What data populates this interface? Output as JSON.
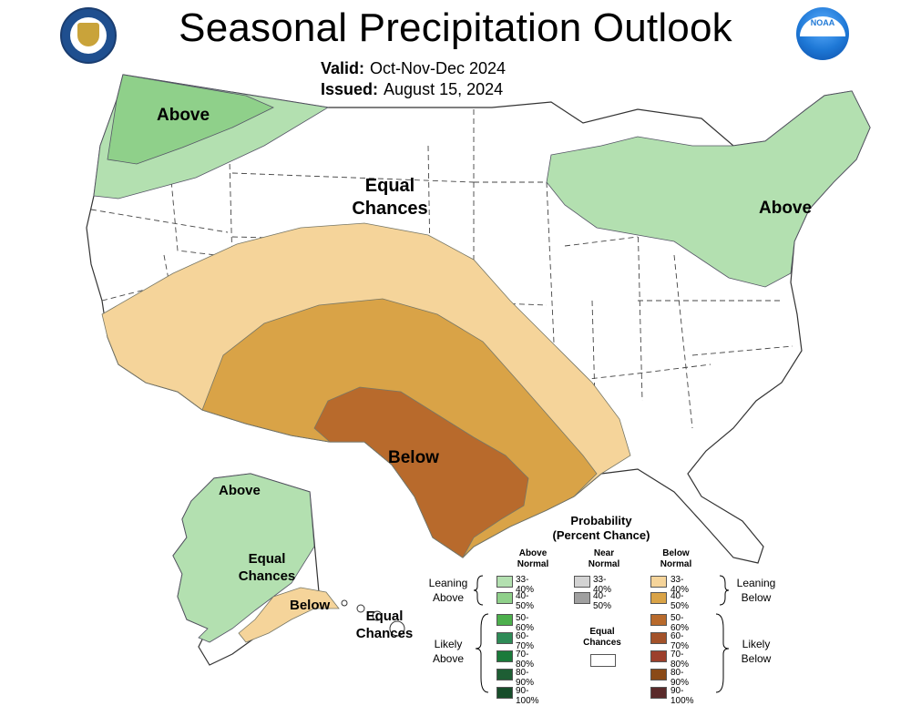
{
  "title": "Seasonal Precipitation Outlook",
  "valid_label": "Valid:",
  "valid_value": "Oct-Nov-Dec 2024",
  "issued_label": "Issued:",
  "issued_value": "August 15, 2024",
  "map_labels": {
    "nw_above": "Above",
    "ne_above": "Above",
    "equal_chances_1": "Equal",
    "equal_chances_2": "Chances",
    "below_tx": "Below",
    "ak_above": "Above",
    "ak_equal_1": "Equal",
    "ak_equal_2": "Chances",
    "ak_below": "Below",
    "hi_equal_1": "Equal",
    "hi_equal_2": "Chances"
  },
  "legend": {
    "title_1": "Probability",
    "title_2": "(Percent Chance)",
    "col_above": [
      "Above",
      "Normal"
    ],
    "col_near": [
      "Near",
      "Normal"
    ],
    "col_below": [
      "Below",
      "Normal"
    ],
    "leaning_above": [
      "Leaning",
      "Above"
    ],
    "leaning_below": [
      "Leaning",
      "Below"
    ],
    "likely_above": [
      "Likely",
      "Above"
    ],
    "likely_below": [
      "Likely",
      "Below"
    ],
    "equal_chances": [
      "Equal",
      "Chances"
    ],
    "above_rows": [
      "33-40%",
      "40-50%",
      "50-60%",
      "60-70%",
      "70-80%",
      "80-90%",
      "90-100%"
    ],
    "near_rows": [
      "33-40%",
      "40-50%"
    ],
    "below_rows": [
      "33-40%",
      "40-50%",
      "50-60%",
      "60-70%",
      "70-80%",
      "80-90%",
      "90-100%"
    ],
    "above_colors": [
      "#b3e0b0",
      "#8fd08a",
      "#4caf4c",
      "#2e8b57",
      "#1a7a3a",
      "#1e5e34",
      "#174d2a"
    ],
    "near_colors": [
      "#d3d3d3",
      "#a0a0a0"
    ],
    "below_colors": [
      "#f5d49a",
      "#d9a347",
      "#b86a2c",
      "#a3522a",
      "#9c3f2c",
      "#8a4a17",
      "#5a2a2a"
    ]
  },
  "colors": {
    "above_33_40": "#b3e0b0",
    "above_40_50": "#8fd08a",
    "below_33_40": "#f5d49a",
    "below_40_50": "#d9a347",
    "below_50_60": "#b86a2c",
    "border": "#333333"
  }
}
